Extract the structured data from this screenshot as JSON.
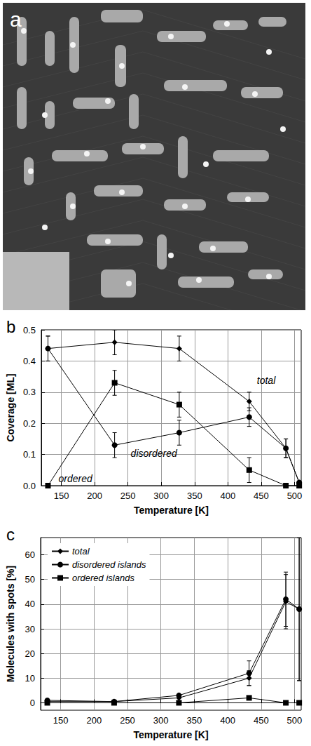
{
  "panel_a": {
    "label": "a"
  },
  "chart_data": [
    {
      "type": "line",
      "title": "b",
      "x_label": "Temperature [K]",
      "y_label": "Coverage [ML]",
      "x": [
        130,
        230,
        327,
        432,
        487,
        507
      ],
      "xlim": [
        120,
        510
      ],
      "xticks": [
        150,
        200,
        250,
        300,
        350,
        400,
        450,
        500
      ],
      "ylim": [
        0,
        0.5
      ],
      "yticks": [
        {
          "value": 0,
          "label": "0.0"
        },
        0.1,
        0.2,
        0.3,
        0.4,
        0.5
      ],
      "grid": true,
      "series": [
        {
          "name": "total",
          "color": "#000000",
          "marker": "diamond",
          "values": [
            0.44,
            0.46,
            0.44,
            0.27,
            0.12,
            0.01
          ],
          "errors": [
            0.04,
            0.04,
            0.04,
            0.03,
            0.03,
            null
          ]
        },
        {
          "name": "disordered",
          "color": "#000000",
          "marker": "circle",
          "values": [
            0.44,
            0.13,
            0.17,
            0.22,
            0.12,
            0.01
          ],
          "errors": [
            0.04,
            0.04,
            0.04,
            0.03,
            0.03,
            null
          ]
        },
        {
          "name": "ordered",
          "color": "#000000",
          "marker": "square",
          "values": [
            0.0,
            0.33,
            0.26,
            0.05,
            0.0,
            0.0
          ],
          "errors": [
            null,
            0.04,
            0.04,
            0.04,
            null,
            null
          ]
        }
      ]
    },
    {
      "type": "line",
      "title": "c",
      "x_label": "Temperature [K]",
      "y_label": "Molecules with spots [%]",
      "x": [
        130,
        230,
        327,
        432,
        487,
        507
      ],
      "xlim": [
        120,
        510
      ],
      "xticks": [
        150,
        200,
        250,
        300,
        350,
        400,
        450,
        500
      ],
      "ylim": [
        -3,
        67
      ],
      "yticks": [
        0,
        10,
        20,
        30,
        40,
        50,
        60
      ],
      "grid": true,
      "legend": "upper left",
      "series": [
        {
          "name": "total",
          "color": "#000000",
          "marker": "diamond",
          "values": [
            0.5,
            0.5,
            2,
            10,
            41,
            38
          ],
          "errors": [
            null,
            null,
            null,
            3,
            11,
            29
          ]
        },
        {
          "name": "disordered islands",
          "color": "#000000",
          "marker": "circle",
          "values": [
            1,
            0.5,
            3,
            12,
            42,
            38
          ],
          "errors": [
            null,
            null,
            null,
            5,
            11,
            29
          ]
        },
        {
          "name": "ordered islands",
          "color": "#000000",
          "marker": "square",
          "values": [
            0,
            0,
            0,
            2,
            0,
            0
          ]
        }
      ]
    }
  ]
}
